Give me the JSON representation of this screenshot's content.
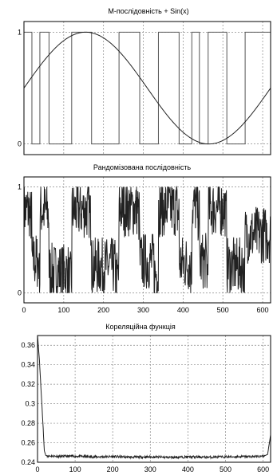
{
  "chart_data": [
    {
      "type": "line",
      "title": "M-послідовність + Sin(x)",
      "y_ticks": [
        "1",
        "0"
      ],
      "x_ticks": [],
      "xlim": [
        0,
        620
      ],
      "ylim": [
        0,
        1
      ],
      "grid": true,
      "series": [
        {
          "kind": "step",
          "x": [
            0,
            14,
            20,
            38,
            40,
            58,
            63,
            112,
            120,
            165,
            170,
            229,
            239,
            287,
            291,
            327,
            338,
            385,
            390,
            418,
            422,
            437,
            441,
            460,
            463,
            506,
            510,
            552,
            556,
            620
          ],
          "y": [
            1,
            1,
            0,
            0,
            1,
            1,
            0,
            0,
            1,
            1,
            0,
            0,
            1,
            1,
            0,
            0,
            1,
            1,
            0,
            0,
            1,
            1,
            0,
            0,
            1,
            1,
            0,
            0,
            1,
            1
          ]
        },
        {
          "kind": "sine",
          "x": [
            0,
            155,
            310,
            465,
            620
          ],
          "y": [
            0.5,
            1,
            0.5,
            0,
            0.5
          ]
        }
      ]
    },
    {
      "type": "line",
      "title": "Рандомізована послідовність",
      "y_ticks": [
        "1",
        "0"
      ],
      "x_ticks": [
        "0",
        "100",
        "200",
        "300",
        "400",
        "500",
        "600"
      ],
      "xlim": [
        0,
        620
      ],
      "ylim": [
        0,
        1
      ],
      "grid": true,
      "series": [
        {
          "segments_x": [
            0,
            14,
            20,
            38,
            40,
            58,
            63,
            112,
            120,
            165,
            170,
            229,
            239,
            287,
            291,
            327,
            338,
            385,
            390,
            418,
            422,
            437,
            441,
            460,
            463,
            506,
            510,
            552,
            556,
            620
          ],
          "segments_level": [
            0.78,
            0.72,
            0.3,
            0.15,
            0.78,
            0.75,
            0.2,
            0.12,
            0.78,
            0.7,
            0.25,
            0.15,
            0.8,
            0.72,
            0.3,
            0.18,
            0.8,
            0.75,
            0.28,
            0.2,
            0.82,
            0.75,
            0.3,
            0.2,
            0.8,
            0.72,
            0.25,
            0.15,
            0.55,
            0.35
          ]
        }
      ]
    },
    {
      "type": "line",
      "title": "Кореляційна функція",
      "y_ticks": [
        "0.36",
        "0.34",
        "0.32",
        "0.3",
        "0.28",
        "0.26",
        "0.24"
      ],
      "x_ticks": [
        "0",
        "100",
        "200",
        "300",
        "400",
        "500",
        "600"
      ],
      "xlim": [
        0,
        620
      ],
      "ylim": [
        0.24,
        0.37
      ],
      "grid": true,
      "series": [
        {
          "x": [
            0,
            5,
            10,
            15,
            18,
            22,
            30,
            60,
            100,
            150,
            200,
            250,
            300,
            350,
            400,
            450,
            500,
            550,
            600,
            612,
            616,
            620
          ],
          "y": [
            0.37,
            0.345,
            0.31,
            0.275,
            0.252,
            0.247,
            0.2465,
            0.246,
            0.2462,
            0.2455,
            0.2458,
            0.2452,
            0.2455,
            0.245,
            0.2455,
            0.2452,
            0.2455,
            0.2458,
            0.246,
            0.248,
            0.258,
            0.268
          ]
        }
      ]
    }
  ]
}
